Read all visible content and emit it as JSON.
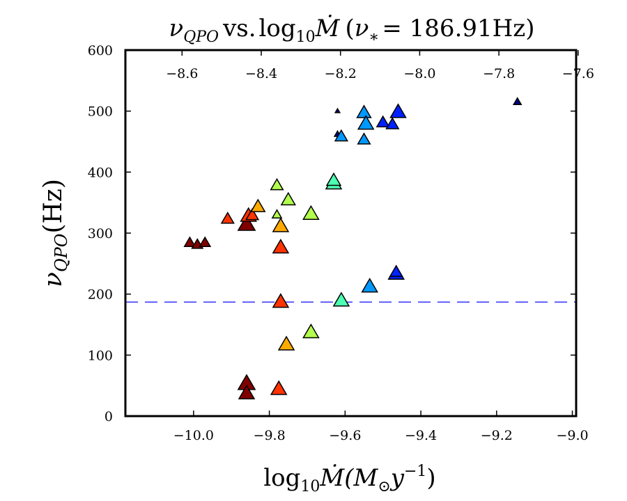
{
  "chart_data": {
    "type": "scatter",
    "title": {
      "nu": "ν",
      "nu_sub": "QPO",
      "vs": "vs.",
      "log": "log",
      "log_sub": "10",
      "mdot": "Ṁ",
      "paren_open": "(",
      "nu_star": "ν",
      "star": "∗",
      "equals_value": "= 186.91Hz",
      "paren_close": ")"
    },
    "xlabel": {
      "log": "log",
      "log_sub": "10",
      "mdot": "Ṁ",
      "unit_open": "(M",
      "odot": "⊙",
      "y": "y",
      "exp": "−1",
      "unit_close": ")"
    },
    "ylabel": {
      "nu": "ν",
      "nu_sub": "QPO",
      "unit": "(Hz)"
    },
    "xlim": [
      -10.18,
      -8.99
    ],
    "ylim": [
      0,
      600
    ],
    "top_xlim": [
      -8.743,
      -7.605
    ],
    "x_ticks": [
      -10.0,
      -9.8,
      -9.6,
      -9.4,
      -9.2,
      -9.0
    ],
    "x_tick_labels": [
      "−10.0",
      "−9.8",
      "−9.6",
      "−9.4",
      "−9.2",
      "−9.0"
    ],
    "top_x_ticks": [
      -8.6,
      -8.4,
      -8.2,
      -8.0,
      -7.8,
      -7.6
    ],
    "top_x_tick_labels": [
      "−8.6",
      "−8.4",
      "−8.2",
      "−8.0",
      "−7.8",
      "−7.6"
    ],
    "y_ticks": [
      0,
      100,
      200,
      300,
      400,
      500,
      600
    ],
    "y_tick_labels": [
      "0",
      "100",
      "200",
      "300",
      "400",
      "500",
      "600"
    ],
    "reference_line": {
      "y": 186.91,
      "style": "dashed",
      "color": "#3333ff"
    },
    "grid": false,
    "marker": "triangle",
    "points": [
      {
        "x": -10.01,
        "y": 284,
        "color": "#800000",
        "size": 7
      },
      {
        "x": -9.99,
        "y": 281,
        "color": "#800000",
        "size": 7
      },
      {
        "x": -9.97,
        "y": 284,
        "color": "#800000",
        "size": 7
      },
      {
        "x": -9.91,
        "y": 323,
        "color": "#ff3300",
        "size": 8
      },
      {
        "x": -9.86,
        "y": 314,
        "color": "#800000",
        "size": 11
      },
      {
        "x": -9.855,
        "y": 328,
        "color": "#ff3300",
        "size": 10
      },
      {
        "x": -9.845,
        "y": 329,
        "color": "#ff3300",
        "size": 8
      },
      {
        "x": -9.83,
        "y": 343,
        "color": "#ffaa00",
        "size": 9
      },
      {
        "x": -9.78,
        "y": 378,
        "color": "#b2ff4d",
        "size": 8
      },
      {
        "x": -9.78,
        "y": 330,
        "color": "#b2ff4d",
        "size": 6
      },
      {
        "x": -9.77,
        "y": 311,
        "color": "#ffaa00",
        "size": 10
      },
      {
        "x": -9.77,
        "y": 276,
        "color": "#ff3300",
        "size": 10
      },
      {
        "x": -9.75,
        "y": 354,
        "color": "#b2ff4d",
        "size": 9
      },
      {
        "x": -9.69,
        "y": 331,
        "color": "#b2ff4d",
        "size": 10
      },
      {
        "x": -9.63,
        "y": 381,
        "color": "#4dffb2",
        "size": 10
      },
      {
        "x": -9.63,
        "y": 386,
        "color": "#4dffb2",
        "size": 9
      },
      {
        "x": -9.62,
        "y": 462,
        "color": "#000080",
        "size": 4
      },
      {
        "x": -9.62,
        "y": 500,
        "color": "#000080",
        "size": 3
      },
      {
        "x": -9.61,
        "y": 458,
        "color": "#0099ff",
        "size": 8
      },
      {
        "x": -9.55,
        "y": 497,
        "color": "#0099ff",
        "size": 9
      },
      {
        "x": -9.545,
        "y": 479,
        "color": "#0099ff",
        "size": 10
      },
      {
        "x": -9.55,
        "y": 453,
        "color": "#0099ff",
        "size": 8
      },
      {
        "x": -9.5,
        "y": 481,
        "color": "#0022ff",
        "size": 8
      },
      {
        "x": -9.475,
        "y": 478,
        "color": "#0022ff",
        "size": 8
      },
      {
        "x": -9.46,
        "y": 498,
        "color": "#0022ff",
        "size": 10
      },
      {
        "x": -9.145,
        "y": 515,
        "color": "#000080",
        "size": 5
      },
      {
        "x": -9.77,
        "y": 187,
        "color": "#ff3300",
        "size": 10
      },
      {
        "x": -9.61,
        "y": 189,
        "color": "#4dffb2",
        "size": 10
      },
      {
        "x": -9.535,
        "y": 212,
        "color": "#0099ff",
        "size": 10
      },
      {
        "x": -9.465,
        "y": 233,
        "color": "#0022ff",
        "size": 10
      },
      {
        "x": -9.465,
        "y": 236,
        "color": "#0022ff",
        "size": 8
      },
      {
        "x": -9.69,
        "y": 137,
        "color": "#b2ff4d",
        "size": 10
      },
      {
        "x": -9.755,
        "y": 117,
        "color": "#ffaa00",
        "size": 10
      },
      {
        "x": -9.86,
        "y": 53,
        "color": "#800000",
        "size": 11
      },
      {
        "x": -9.86,
        "y": 37,
        "color": "#800000",
        "size": 10
      },
      {
        "x": -9.775,
        "y": 44,
        "color": "#ff3300",
        "size": 10
      }
    ]
  }
}
